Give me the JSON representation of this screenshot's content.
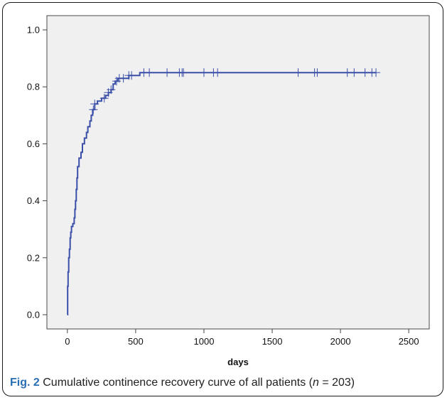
{
  "figure": {
    "label": "Fig. 2",
    "caption_main": "Cumulative continence recovery curve of all patients (",
    "caption_n": "n",
    "caption_tail": " = 203)"
  },
  "chart_data": {
    "type": "line",
    "title": "",
    "xlabel": "days",
    "ylabel": "",
    "xlim": [
      -150,
      2650
    ],
    "ylim": [
      -0.05,
      1.05
    ],
    "xticks": [
      0,
      500,
      1000,
      1500,
      2000,
      2500
    ],
    "yticks": [
      0.0,
      0.2,
      0.4,
      0.6,
      0.8,
      1.0
    ],
    "xtick_labels": [
      "0",
      "500",
      "1000",
      "1500",
      "2000",
      "2500"
    ],
    "ytick_labels": [
      "0.0",
      "0.2",
      "0.4",
      "0.6",
      "0.8",
      "1.0"
    ],
    "grid": false,
    "colors": {
      "line": "#3a4fa8",
      "plot_bg": "#f0f0f0"
    },
    "series": [
      {
        "step": true,
        "points": [
          [
            0,
            0.0
          ],
          [
            2,
            0.1
          ],
          [
            5,
            0.15
          ],
          [
            10,
            0.2
          ],
          [
            15,
            0.23
          ],
          [
            20,
            0.27
          ],
          [
            25,
            0.29
          ],
          [
            30,
            0.31
          ],
          [
            40,
            0.32
          ],
          [
            50,
            0.34
          ],
          [
            55,
            0.37
          ],
          [
            60,
            0.4
          ],
          [
            65,
            0.44
          ],
          [
            70,
            0.48
          ],
          [
            75,
            0.52
          ],
          [
            85,
            0.55
          ],
          [
            100,
            0.57
          ],
          [
            110,
            0.6
          ],
          [
            125,
            0.62
          ],
          [
            140,
            0.64
          ],
          [
            150,
            0.66
          ],
          [
            165,
            0.68
          ],
          [
            175,
            0.7
          ],
          [
            185,
            0.72
          ],
          [
            200,
            0.74
          ],
          [
            220,
            0.75
          ],
          [
            250,
            0.76
          ],
          [
            280,
            0.77
          ],
          [
            300,
            0.78
          ],
          [
            320,
            0.79
          ],
          [
            335,
            0.81
          ],
          [
            350,
            0.82
          ],
          [
            370,
            0.83
          ],
          [
            400,
            0.83
          ],
          [
            450,
            0.84
          ],
          [
            500,
            0.84
          ],
          [
            530,
            0.85
          ],
          [
            2260,
            0.85
          ]
        ],
        "censored_x": [
          190,
          200,
          270,
          300,
          320,
          360,
          380,
          410,
          450,
          470,
          560,
          600,
          730,
          820,
          840,
          850,
          1000,
          1070,
          1100,
          1690,
          1810,
          1830,
          2050,
          2100,
          2180,
          2230,
          2260
        ]
      }
    ]
  }
}
